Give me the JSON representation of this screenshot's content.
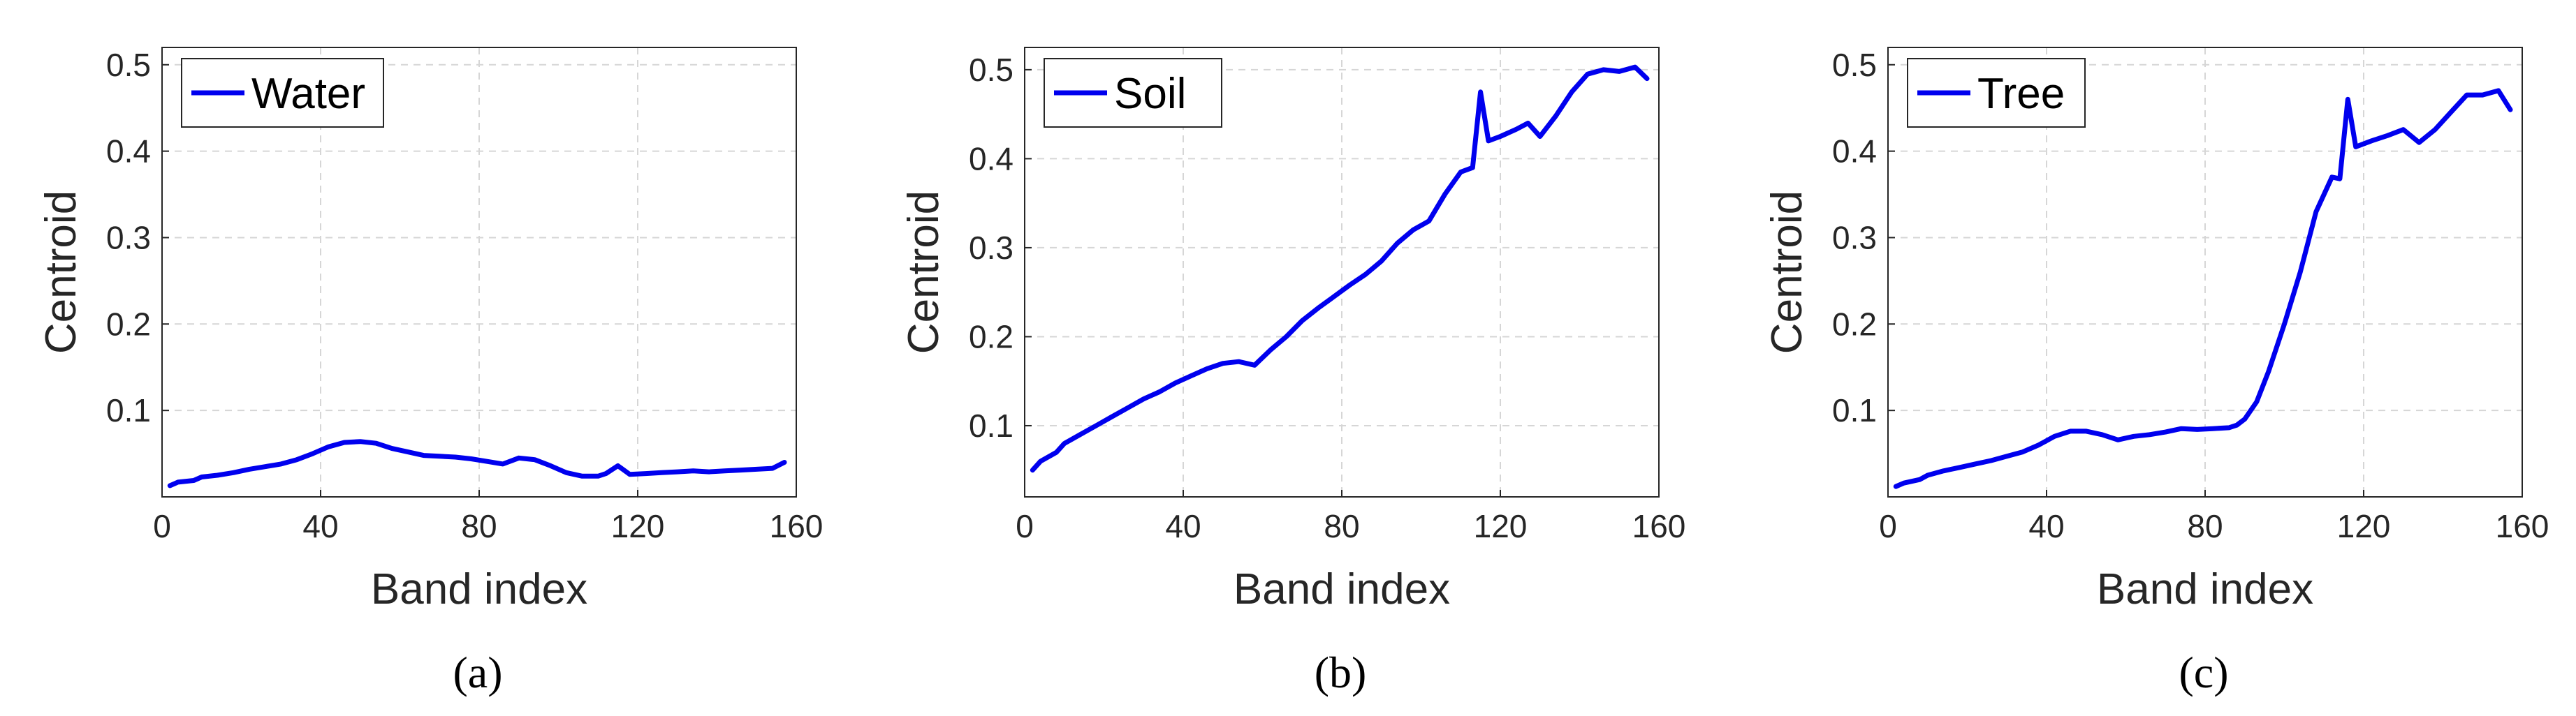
{
  "chart_data": [
    {
      "type": "line",
      "caption": "(a)",
      "xlabel": "Band index",
      "ylabel": "Centroid",
      "xlim": [
        0,
        160
      ],
      "ylim": [
        0,
        0.52
      ],
      "xticks": [
        0,
        40,
        80,
        120,
        160
      ],
      "yticks": [
        0.1,
        0.2,
        0.3,
        0.4,
        0.5
      ],
      "grid": true,
      "legend_position": "top-left",
      "line_color": "#0000ee",
      "series": [
        {
          "name": "Water",
          "x": [
            2,
            4,
            8,
            10,
            14,
            18,
            22,
            26,
            30,
            34,
            38,
            42,
            46,
            50,
            54,
            58,
            62,
            66,
            70,
            74,
            78,
            82,
            86,
            90,
            94,
            98,
            102,
            106,
            110,
            112,
            115,
            118,
            122,
            126,
            130,
            134,
            138,
            142,
            146,
            150,
            154,
            157
          ],
          "y": [
            0.013,
            0.017,
            0.019,
            0.023,
            0.025,
            0.028,
            0.032,
            0.035,
            0.038,
            0.043,
            0.05,
            0.058,
            0.063,
            0.064,
            0.062,
            0.056,
            0.052,
            0.048,
            0.047,
            0.046,
            0.044,
            0.041,
            0.038,
            0.045,
            0.043,
            0.036,
            0.028,
            0.024,
            0.024,
            0.027,
            0.036,
            0.026,
            0.027,
            0.028,
            0.029,
            0.03,
            0.029,
            0.03,
            0.031,
            0.032,
            0.033,
            0.04
          ]
        }
      ]
    },
    {
      "type": "line",
      "caption": "(b)",
      "xlabel": "Band index",
      "ylabel": "Centroid",
      "xlim": [
        0,
        160
      ],
      "ylim": [
        0.02,
        0.525
      ],
      "xticks": [
        0,
        40,
        80,
        120,
        160
      ],
      "yticks": [
        0.1,
        0.2,
        0.3,
        0.4,
        0.5
      ],
      "grid": true,
      "legend_position": "top-left",
      "line_color": "#0000ee",
      "series": [
        {
          "name": "Soil",
          "x": [
            2,
            4,
            8,
            10,
            14,
            18,
            22,
            26,
            30,
            34,
            38,
            42,
            46,
            50,
            54,
            58,
            62,
            66,
            70,
            74,
            78,
            82,
            86,
            90,
            94,
            98,
            102,
            106,
            110,
            113,
            115,
            117,
            120,
            124,
            127,
            130,
            134,
            138,
            142,
            146,
            150,
            154,
            157
          ],
          "y": [
            0.05,
            0.06,
            0.07,
            0.08,
            0.09,
            0.1,
            0.11,
            0.12,
            0.13,
            0.138,
            0.148,
            0.156,
            0.164,
            0.17,
            0.172,
            0.168,
            0.185,
            0.2,
            0.218,
            0.232,
            0.245,
            0.258,
            0.27,
            0.285,
            0.305,
            0.32,
            0.33,
            0.36,
            0.385,
            0.39,
            0.475,
            0.42,
            0.425,
            0.433,
            0.44,
            0.425,
            0.448,
            0.475,
            0.495,
            0.5,
            0.498,
            0.503,
            0.49
          ]
        }
      ]
    },
    {
      "type": "line",
      "caption": "(c)",
      "xlabel": "Band index",
      "ylabel": "Centroid",
      "xlim": [
        0,
        160
      ],
      "ylim": [
        0,
        0.52
      ],
      "xticks": [
        0,
        40,
        80,
        120,
        160
      ],
      "yticks": [
        0.1,
        0.2,
        0.3,
        0.4,
        0.5
      ],
      "grid": true,
      "legend_position": "top-left",
      "line_color": "#0000ee",
      "series": [
        {
          "name": "Tree",
          "x": [
            2,
            4,
            8,
            10,
            14,
            18,
            22,
            26,
            30,
            34,
            38,
            42,
            46,
            50,
            54,
            58,
            62,
            66,
            70,
            74,
            78,
            82,
            86,
            88,
            90,
            93,
            96,
            100,
            104,
            108,
            112,
            114,
            116,
            118,
            122,
            126,
            130,
            134,
            138,
            142,
            146,
            150,
            154,
            157
          ],
          "y": [
            0.012,
            0.016,
            0.02,
            0.025,
            0.03,
            0.034,
            0.038,
            0.042,
            0.047,
            0.052,
            0.06,
            0.07,
            0.076,
            0.076,
            0.072,
            0.066,
            0.07,
            0.072,
            0.075,
            0.079,
            0.078,
            0.079,
            0.08,
            0.083,
            0.09,
            0.11,
            0.145,
            0.2,
            0.26,
            0.33,
            0.37,
            0.368,
            0.46,
            0.405,
            0.412,
            0.418,
            0.425,
            0.41,
            0.425,
            0.445,
            0.465,
            0.465,
            0.47,
            0.448
          ]
        }
      ]
    }
  ]
}
